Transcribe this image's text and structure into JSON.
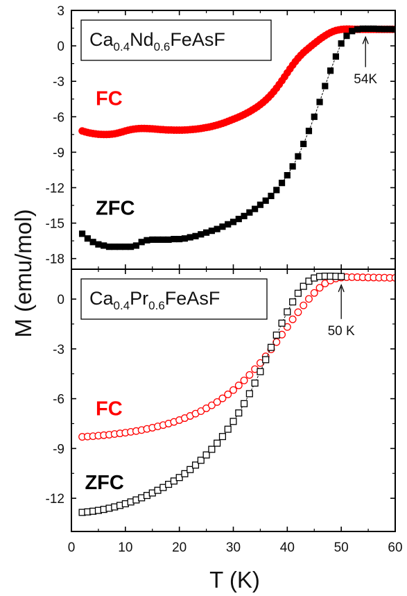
{
  "chart_data": {
    "type": "scatter",
    "xlabel": "T (K)",
    "ylabel": "M (emu/mol)",
    "xlim": [
      0,
      60
    ],
    "xticks": [
      0,
      10,
      20,
      30,
      40,
      50,
      60
    ],
    "panels": [
      {
        "id": "top",
        "legend_box": {
          "base": "Ca",
          "sub1": "0.4",
          "mid": "Nd",
          "sub2": "0.6",
          "tail": "FeAsF"
        },
        "ylim": [
          -18.9,
          3
        ],
        "yticks": [
          3,
          0,
          -3,
          -6,
          -9,
          -12,
          -15,
          -18
        ],
        "annotation": {
          "text": "54K",
          "x": 54.5,
          "arrow_from_y": -1.8,
          "arrow_to_y": 0.75
        },
        "series": [
          {
            "name": "FC",
            "color": "#ff0000",
            "marker": "circle-filled",
            "x": [
              2,
              2.5,
              3,
              3.5,
              4,
              4.5,
              5,
              5.5,
              6,
              6.5,
              7,
              7.5,
              8,
              8.5,
              9,
              9.5,
              10,
              10.5,
              11,
              11.5,
              12,
              12.5,
              13,
              13.5,
              14,
              14.5,
              15,
              15.5,
              16,
              16.5,
              17,
              17.5,
              18,
              18.5,
              19,
              19.5,
              20,
              20.5,
              21,
              21.5,
              22,
              22.5,
              23,
              23.5,
              24,
              24.5,
              25,
              25.5,
              26,
              26.5,
              27,
              27.5,
              28,
              28.5,
              29,
              29.5,
              30,
              30.5,
              31,
              31.5,
              32,
              32.5,
              33,
              33.5,
              34,
              34.5,
              35,
              35.5,
              36,
              36.5,
              37,
              37.5,
              38,
              38.5,
              39,
              39.5,
              40,
              40.5,
              41,
              41.5,
              42,
              42.5,
              43,
              43.5,
              44,
              44.5,
              45,
              45.5,
              46,
              46.5,
              47,
              47.5,
              48,
              48.5,
              49,
              49.5,
              50,
              50.5,
              51,
              51.5,
              52,
              52.5,
              53,
              53.5,
              54,
              54.5,
              55,
              55.5,
              56,
              56.5,
              57,
              57.5,
              58,
              58.5,
              59,
              59.5,
              60
            ],
            "y": [
              -7.2,
              -7.27,
              -7.33,
              -7.38,
              -7.42,
              -7.45,
              -7.48,
              -7.49,
              -7.5,
              -7.5,
              -7.49,
              -7.47,
              -7.44,
              -7.39,
              -7.33,
              -7.27,
              -7.2,
              -7.14,
              -7.09,
              -7.05,
              -7.02,
              -7.0,
              -6.99,
              -6.99,
              -7.0,
              -7.01,
              -7.02,
              -7.04,
              -7.06,
              -7.08,
              -7.09,
              -7.11,
              -7.12,
              -7.12,
              -7.13,
              -7.13,
              -7.13,
              -7.13,
              -7.12,
              -7.11,
              -7.09,
              -7.07,
              -7.05,
              -7.02,
              -6.99,
              -6.95,
              -6.91,
              -6.87,
              -6.82,
              -6.76,
              -6.7,
              -6.63,
              -6.56,
              -6.48,
              -6.39,
              -6.3,
              -6.21,
              -6.12,
              -6.02,
              -5.92,
              -5.81,
              -5.69,
              -5.57,
              -5.43,
              -5.29,
              -5.14,
              -4.97,
              -4.79,
              -4.59,
              -4.37,
              -4.13,
              -3.87,
              -3.58,
              -3.27,
              -2.95,
              -2.62,
              -2.28,
              -1.95,
              -1.63,
              -1.33,
              -1.05,
              -0.8,
              -0.57,
              -0.37,
              -0.18,
              0.01,
              0.19,
              0.37,
              0.55,
              0.71,
              0.86,
              1.0,
              1.12,
              1.22,
              1.3,
              1.35,
              1.39,
              1.41,
              1.42,
              1.42,
              1.41,
              1.4,
              1.4,
              1.4,
              1.4,
              1.4,
              1.4,
              1.4,
              1.4,
              1.4,
              1.4,
              1.4,
              1.4,
              1.4,
              1.4,
              1.4,
              1.4
            ]
          },
          {
            "name": "ZFC",
            "color": "#000000",
            "marker": "square-filled",
            "connect": true,
            "x": [
              2,
              3,
              4,
              5,
              6,
              7,
              8,
              9,
              10,
              11,
              12,
              13,
              14,
              15,
              16,
              17,
              18,
              19,
              20,
              21,
              22,
              23,
              24,
              25,
              26,
              27,
              28,
              29,
              30,
              31,
              32,
              33,
              34,
              35,
              36,
              37,
              38,
              39,
              40,
              41,
              42,
              43,
              44,
              45,
              46,
              47,
              48,
              49,
              50,
              51,
              52,
              53,
              54,
              55,
              56,
              57,
              58,
              59,
              60
            ],
            "y": [
              -15.9,
              -16.3,
              -16.6,
              -16.8,
              -16.9,
              -17.0,
              -17.0,
              -17.0,
              -17.0,
              -17.0,
              -16.9,
              -16.6,
              -16.45,
              -16.4,
              -16.4,
              -16.4,
              -16.4,
              -16.35,
              -16.35,
              -16.3,
              -16.2,
              -16.1,
              -15.95,
              -15.8,
              -15.65,
              -15.5,
              -15.3,
              -15.1,
              -14.9,
              -14.65,
              -14.4,
              -14.1,
              -13.8,
              -13.45,
              -13.1,
              -12.7,
              -12.2,
              -11.6,
              -10.95,
              -10.2,
              -9.35,
              -8.3,
              -7.2,
              -6.0,
              -4.75,
              -3.4,
              -2.1,
              -0.9,
              0.2,
              0.85,
              1.25,
              1.4,
              1.45,
              1.45,
              1.45,
              1.43,
              1.42,
              1.42,
              1.4
            ]
          }
        ],
        "labels": [
          {
            "text": "FC",
            "color": "#ff0000",
            "x": 4.5,
            "y": -5.0
          },
          {
            "text": "ZFC",
            "color": "#000000",
            "x": 4.5,
            "y": -14.3
          }
        ]
      },
      {
        "id": "bottom",
        "legend_box": {
          "base": "Ca",
          "sub1": "0.4",
          "mid": "Pr",
          "sub2": "0.6",
          "tail": "FeAsF"
        },
        "ylim": [
          -14.0,
          1.8
        ],
        "yticks": [
          0,
          -3,
          -6,
          -9,
          -12
        ],
        "annotation": {
          "text": "50 K",
          "x": 50,
          "arrow_from_y": -1.2,
          "arrow_to_y": 0.85
        },
        "series": [
          {
            "name": "FC",
            "color": "#ff0000",
            "marker": "circle-open",
            "x": [
              2,
              3,
              4,
              5,
              6,
              7,
              8,
              9,
              10,
              11,
              12,
              13,
              14,
              15,
              16,
              17,
              18,
              19,
              20,
              21,
              22,
              23,
              24,
              25,
              26,
              27,
              28,
              29,
              30,
              31,
              32,
              33,
              34,
              35,
              36,
              37,
              38,
              39,
              40,
              41,
              42,
              43,
              44,
              45,
              46,
              47,
              48,
              49,
              50,
              51,
              52,
              53,
              54,
              55,
              56,
              57,
              58,
              59,
              60
            ],
            "y": [
              -8.3,
              -8.28,
              -8.26,
              -8.23,
              -8.2,
              -8.17,
              -8.13,
              -8.09,
              -8.05,
              -8.0,
              -7.95,
              -7.89,
              -7.82,
              -7.75,
              -7.67,
              -7.59,
              -7.5,
              -7.4,
              -7.29,
              -7.17,
              -7.04,
              -6.9,
              -6.75,
              -6.58,
              -6.4,
              -6.2,
              -5.98,
              -5.74,
              -5.48,
              -5.2,
              -4.9,
              -4.57,
              -4.22,
              -3.85,
              -3.45,
              -3.03,
              -2.59,
              -2.14,
              -1.68,
              -1.22,
              -0.79,
              -0.38,
              0.01,
              0.37,
              0.68,
              0.94,
              1.12,
              1.24,
              1.3,
              1.32,
              1.32,
              1.32,
              1.31,
              1.3,
              1.3,
              1.29,
              1.29,
              1.28,
              1.28
            ]
          },
          {
            "name": "ZFC",
            "color": "#000000",
            "marker": "square-open",
            "connect": true,
            "x": [
              2,
              3,
              4,
              5,
              6,
              7,
              8,
              9,
              10,
              11,
              12,
              13,
              14,
              15,
              16,
              17,
              18,
              19,
              20,
              21,
              22,
              23,
              24,
              25,
              26,
              27,
              28,
              29,
              30,
              31,
              32,
              33,
              34,
              35,
              36,
              37,
              38,
              39,
              40,
              41,
              42,
              43,
              44,
              45,
              46,
              47,
              48,
              49,
              50
            ],
            "y": [
              -12.85,
              -12.82,
              -12.78,
              -12.73,
              -12.67,
              -12.6,
              -12.52,
              -12.43,
              -12.33,
              -12.22,
              -12.1,
              -11.97,
              -11.83,
              -11.68,
              -11.52,
              -11.35,
              -11.16,
              -10.96,
              -10.75,
              -10.52,
              -10.27,
              -10.0,
              -9.71,
              -9.39,
              -9.05,
              -8.68,
              -8.28,
              -7.84,
              -7.37,
              -6.86,
              -6.3,
              -5.7,
              -5.06,
              -4.37,
              -3.65,
              -2.91,
              -2.17,
              -1.45,
              -0.77,
              -0.17,
              0.35,
              0.77,
              1.08,
              1.27,
              1.36,
              1.38,
              1.38,
              1.37,
              1.36
            ]
          }
        ],
        "labels": [
          {
            "text": "FC",
            "color": "#ff0000",
            "x": 4.5,
            "y": -7.0
          },
          {
            "text": "ZFC",
            "color": "#000000",
            "x": 2.5,
            "y": -11.45
          }
        ]
      }
    ]
  }
}
